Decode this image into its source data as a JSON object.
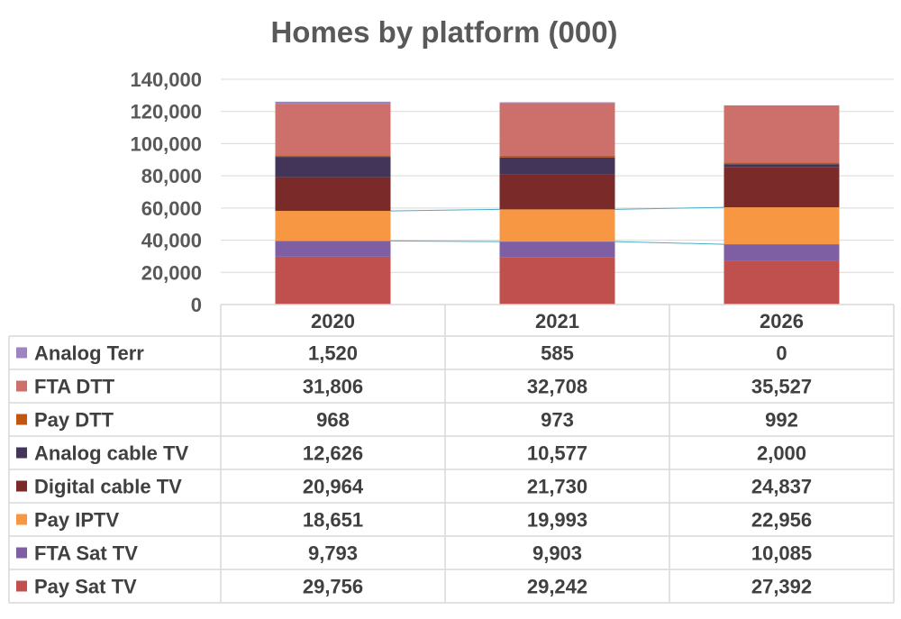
{
  "chart_data": {
    "type": "bar",
    "stacked": true,
    "title": "Homes by platform (000)",
    "categories": [
      "2020",
      "2021",
      "2026"
    ],
    "ylim": [
      0,
      140000
    ],
    "yticks": [
      0,
      20000,
      40000,
      60000,
      80000,
      100000,
      120000,
      140000
    ],
    "ytick_labels": [
      "0",
      "20,000",
      "40,000",
      "60,000",
      "80,000",
      "100,000",
      "120,000",
      "140,000"
    ],
    "grid": true,
    "legend": "data-table",
    "series": [
      {
        "name": "Analog Terr",
        "color": "#9f82c2",
        "values": [
          1520,
          585,
          0
        ],
        "labels": [
          "1,520",
          "585",
          "0"
        ]
      },
      {
        "name": "FTA DTT",
        "color": "#cd706c",
        "values": [
          31806,
          32708,
          35527
        ],
        "labels": [
          "31,806",
          "32,708",
          "35,527"
        ]
      },
      {
        "name": "Pay DTT",
        "color": "#c0560f",
        "values": [
          968,
          973,
          992
        ],
        "labels": [
          "968",
          "973",
          "992"
        ]
      },
      {
        "name": "Analog cable TV",
        "color": "#433559",
        "values": [
          12626,
          10577,
          2000
        ],
        "labels": [
          "12,626",
          "10,577",
          "2,000"
        ]
      },
      {
        "name": "Digital cable TV",
        "color": "#792a29",
        "values": [
          20964,
          21730,
          24837
        ],
        "labels": [
          "20,964",
          "21,730",
          "24,837"
        ]
      },
      {
        "name": "Pay IPTV",
        "color": "#f79744",
        "values": [
          18651,
          19993,
          22956
        ],
        "labels": [
          "18,651",
          "19,993",
          "22,956"
        ]
      },
      {
        "name": "FTA Sat TV",
        "color": "#7f5fa4",
        "values": [
          9793,
          9903,
          10085
        ],
        "labels": [
          "9,793",
          "9,903",
          "10,085"
        ]
      },
      {
        "name": "Pay Sat TV",
        "color": "#c0504d",
        "values": [
          29756,
          29242,
          27392
        ],
        "labels": [
          "29,756",
          "29,242",
          "27,392"
        ]
      }
    ]
  }
}
